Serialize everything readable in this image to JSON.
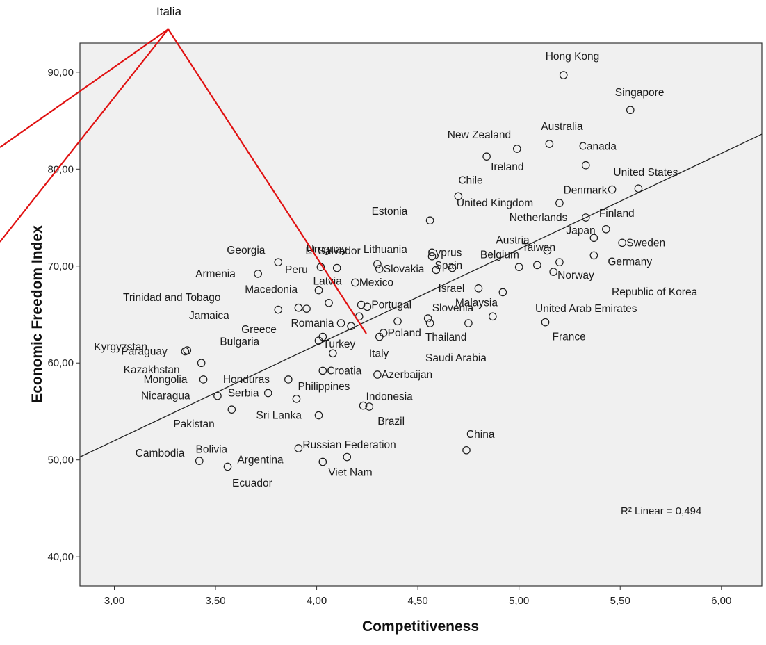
{
  "chart_data": {
    "type": "scatter",
    "xlabel": "Competitiveness",
    "ylabel": "Economic Freedom Index",
    "xlim": [
      2.83,
      6.2
    ],
    "ylim": [
      37.0,
      93.0
    ],
    "x_ticks": [
      "3,00",
      "3,50",
      "4,00",
      "4,50",
      "5,00",
      "5,50",
      "6,00"
    ],
    "x_tick_values": [
      3.0,
      3.5,
      4.0,
      4.5,
      5.0,
      5.5,
      6.0
    ],
    "y_ticks": [
      "40,00",
      "50,00",
      "60,00",
      "70,00",
      "80,00",
      "90,00"
    ],
    "y_tick_values": [
      40,
      50,
      60,
      70,
      80,
      90
    ],
    "grid": false,
    "fit_line": {
      "type": "linear",
      "x_start": 2.83,
      "y_start": 50.3,
      "x_end": 6.2,
      "y_end": 83.6
    },
    "annotation": "R² Linear = 0,494",
    "callout": {
      "label": "Italia",
      "target_country": "Italy"
    },
    "points": [
      {
        "x": 5.22,
        "y": 89.7,
        "label": "Hong Kong"
      },
      {
        "x": 5.55,
        "y": 86.1,
        "label": "Singapore"
      },
      {
        "x": 5.15,
        "y": 82.6,
        "label": "Australia"
      },
      {
        "x": 4.99,
        "y": 82.1,
        "label": "New Zealand"
      },
      {
        "x": 4.84,
        "y": 81.3,
        "label": "Ireland"
      },
      {
        "x": 5.33,
        "y": 80.4,
        "label": "Canada"
      },
      {
        "x": 5.59,
        "y": 78.0,
        "label": "United States"
      },
      {
        "x": 5.46,
        "y": 77.9,
        "label": "Denmark"
      },
      {
        "x": 4.7,
        "y": 77.2,
        "label": "Chile"
      },
      {
        "x": 5.2,
        "y": 76.5,
        "label": "United Kingdom"
      },
      {
        "x": 4.56,
        "y": 74.7,
        "label": "Estonia"
      },
      {
        "x": 5.33,
        "y": 75.0,
        "label": "Netherlands"
      },
      {
        "x": 5.43,
        "y": 73.8,
        "label": "Finland"
      },
      {
        "x": 5.37,
        "y": 72.9,
        "label": "Japan"
      },
      {
        "x": 5.51,
        "y": 72.4,
        "label": "Sweden"
      },
      {
        "x": 4.57,
        "y": 71.0,
        "label": "Spain"
      },
      {
        "x": 5.14,
        "y": 71.6,
        "label": "Austria"
      },
      {
        "x": 5.37,
        "y": 71.1,
        "label": "Germany"
      },
      {
        "x": 5.2,
        "y": 70.4,
        "label": "Taiwan"
      },
      {
        "x": 5.09,
        "y": 70.1,
        "label": "Belgium"
      },
      {
        "x": 5.0,
        "y": 69.9,
        "label": ""
      },
      {
        "x": 5.17,
        "y": 69.4,
        "label": "Norway"
      },
      {
        "x": 4.3,
        "y": 70.2,
        "label": "Lithuania"
      },
      {
        "x": 4.31,
        "y": 69.7,
        "label": "Slovakia"
      },
      {
        "x": 4.59,
        "y": 69.6,
        "label": "Cyprus"
      },
      {
        "x": 4.67,
        "y": 69.8,
        "label": ""
      },
      {
        "x": 3.81,
        "y": 70.4,
        "label": "Georgia"
      },
      {
        "x": 3.71,
        "y": 69.2,
        "label": "Armenia"
      },
      {
        "x": 4.02,
        "y": 69.9,
        "label": "El Salvador"
      },
      {
        "x": 4.1,
        "y": 69.8,
        "label": "Uruguay"
      },
      {
        "x": 4.19,
        "y": 68.3,
        "label": "Mexico"
      },
      {
        "x": 4.01,
        "y": 67.5,
        "label": "Latvia"
      },
      {
        "x": 4.8,
        "y": 67.7,
        "label": "Israel"
      },
      {
        "x": 4.92,
        "y": 67.3,
        "label": ""
      },
      {
        "x": 4.06,
        "y": 66.2,
        "label": ""
      },
      {
        "x": 4.22,
        "y": 66.0,
        "label": ""
      },
      {
        "x": 4.25,
        "y": 65.8,
        "label": "Portugal"
      },
      {
        "x": 3.81,
        "y": 65.5,
        "label": "Macedonia"
      },
      {
        "x": 3.91,
        "y": 65.7,
        "label": ""
      },
      {
        "x": 3.95,
        "y": 65.6,
        "label": ""
      },
      {
        "x": 4.21,
        "y": 64.8,
        "label": ""
      },
      {
        "x": 4.4,
        "y": 64.3,
        "label": ""
      },
      {
        "x": 4.55,
        "y": 64.6,
        "label": "Slovenia"
      },
      {
        "x": 4.56,
        "y": 64.1,
        "label": ""
      },
      {
        "x": 4.87,
        "y": 64.8,
        "label": "Malaysia"
      },
      {
        "x": 4.75,
        "y": 64.1,
        "label": "Thailand"
      },
      {
        "x": 5.13,
        "y": 64.2,
        "label": "France"
      },
      {
        "x": 4.12,
        "y": 64.1,
        "label": "Romania"
      },
      {
        "x": 4.17,
        "y": 63.8,
        "label": "Greece"
      },
      {
        "x": 4.03,
        "y": 62.7,
        "label": "Bulgaria"
      },
      {
        "x": 4.01,
        "y": 62.3,
        "label": "Turkey"
      },
      {
        "x": 4.33,
        "y": 63.1,
        "label": "Poland"
      },
      {
        "x": 4.31,
        "y": 62.7,
        "label": ""
      },
      {
        "x": 3.36,
        "y": 61.3,
        "label": "Kyrgyzstan"
      },
      {
        "x": 3.35,
        "y": 61.2,
        "label": "Paraguay"
      },
      {
        "x": 4.08,
        "y": 61.0,
        "label": "Italy"
      },
      {
        "x": 3.43,
        "y": 60.0,
        "label": "Kazakhstan"
      },
      {
        "x": 4.03,
        "y": 59.2,
        "label": "Croatia"
      },
      {
        "x": 4.3,
        "y": 58.8,
        "label": "Azerbaijan"
      },
      {
        "x": 3.44,
        "y": 58.3,
        "label": "Mongolia"
      },
      {
        "x": 3.86,
        "y": 58.3,
        "label": "Honduras"
      },
      {
        "x": 3.51,
        "y": 56.6,
        "label": "Nicaragua"
      },
      {
        "x": 3.76,
        "y": 56.9,
        "label": "Serbia"
      },
      {
        "x": 3.9,
        "y": 56.3,
        "label": "Philippines"
      },
      {
        "x": 4.23,
        "y": 55.6,
        "label": "Indonesia"
      },
      {
        "x": 4.26,
        "y": 55.5,
        "label": "Brazil"
      },
      {
        "x": 3.58,
        "y": 55.2,
        "label": "Pakistan"
      },
      {
        "x": 4.01,
        "y": 54.6,
        "label": "Sri Lanka"
      },
      {
        "x": 3.91,
        "y": 51.2,
        "label": "Russian Federation"
      },
      {
        "x": 4.74,
        "y": 51.0,
        "label": "China"
      },
      {
        "x": 3.42,
        "y": 49.9,
        "label": "Cambodia"
      },
      {
        "x": 3.56,
        "y": 49.3,
        "label": "Bolivia"
      },
      {
        "x": 4.03,
        "y": 49.8,
        "label": "Argentina"
      },
      {
        "x": 4.15,
        "y": 50.3,
        "label": "Viet Nam"
      }
    ],
    "extra_labels": [
      "Saudi Arabia",
      "Republic of Korea",
      "United Arab Emirates",
      "Jamaica",
      "Trinidad and Tobago",
      "Peru",
      "Ecuador"
    ]
  }
}
